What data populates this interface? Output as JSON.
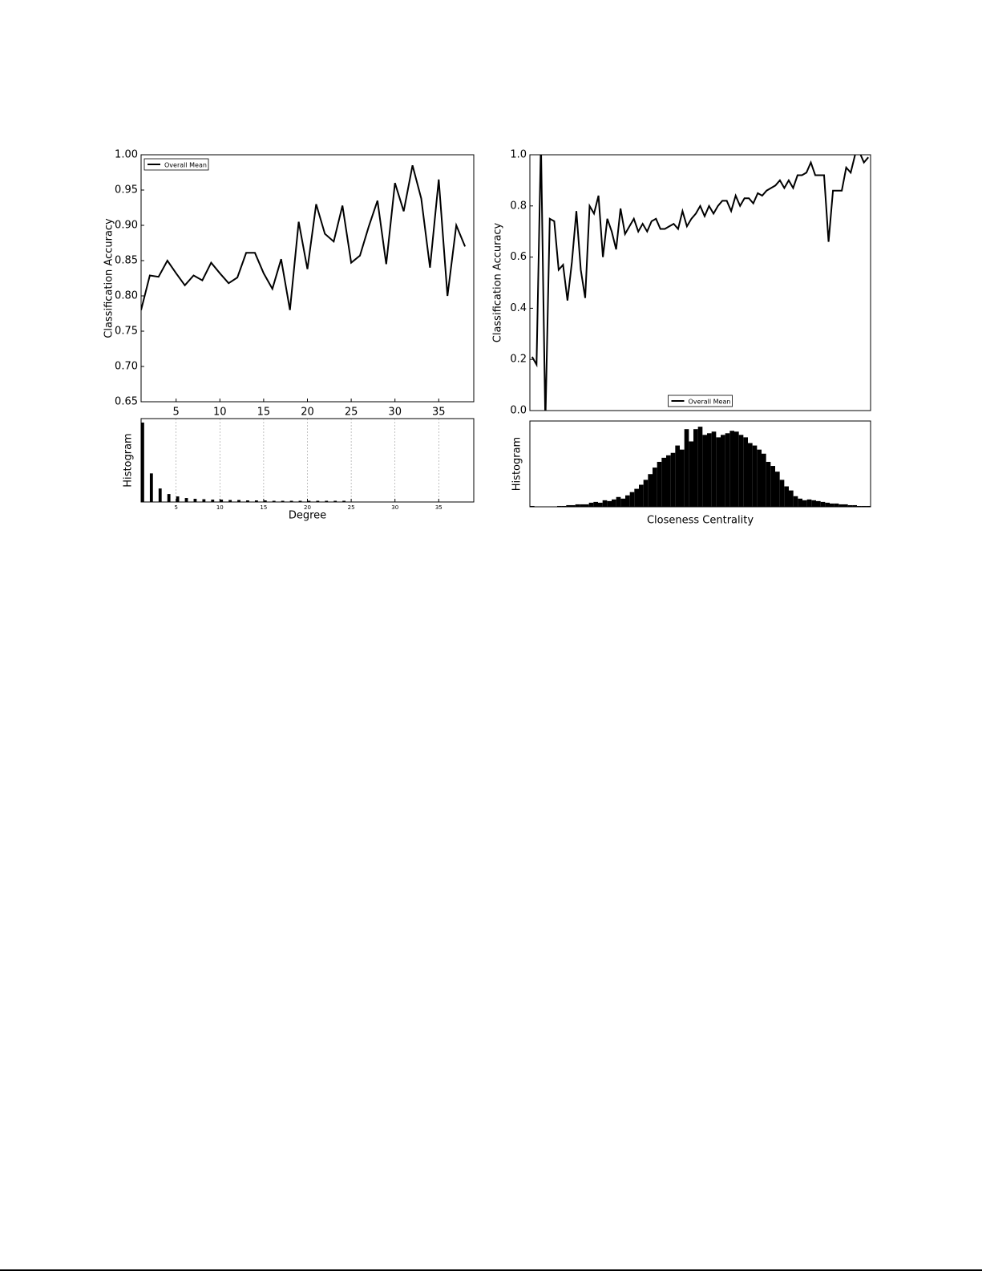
{
  "chart_data": [
    {
      "type": "line",
      "ylabel": "Classification Accuracy",
      "x": [
        1,
        2,
        3,
        4,
        5,
        6,
        7,
        8,
        9,
        10,
        11,
        12,
        13,
        14,
        15,
        16,
        17,
        18,
        19,
        20,
        21,
        22,
        23,
        24,
        25,
        26,
        27,
        28,
        29,
        30,
        31,
        32,
        33,
        34,
        35,
        36,
        37,
        38
      ],
      "series": [
        {
          "name": "Overall Mean",
          "color": "#000000",
          "values": [
            0.78,
            0.829,
            0.827,
            0.85,
            0.832,
            0.815,
            0.829,
            0.822,
            0.847,
            0.832,
            0.818,
            0.826,
            0.861,
            0.861,
            0.832,
            0.81,
            0.852,
            0.78,
            0.905,
            0.838,
            0.93,
            0.888,
            0.877,
            0.928,
            0.847,
            0.857,
            0.898,
            0.935,
            0.845,
            0.96,
            0.92,
            0.985,
            0.938,
            0.84,
            0.965,
            0.8,
            0.9,
            0.87
          ]
        }
      ],
      "xlim": [
        1,
        39
      ],
      "xticks": [
        5,
        10,
        15,
        20,
        25,
        30,
        35
      ],
      "ylim": [
        0.65,
        1
      ],
      "yticks": [
        0.65,
        {
          "value": 0.7,
          "label": "0.70"
        },
        0.75,
        {
          "value": 0.8,
          "label": "0.80"
        },
        0.85,
        {
          "value": 0.9,
          "label": "0.90"
        },
        0.95,
        {
          "value": 1,
          "label": "1.00"
        }
      ],
      "legend": "upper left",
      "grid": false
    },
    {
      "type": "line",
      "ylabel": "Classification Accuracy",
      "series": [
        {
          "name": "Overall Mean",
          "color": "#000000",
          "values": [
            0.21,
            0.18,
            1.05,
            -0.05,
            0.75,
            0.74,
            0.55,
            0.57,
            0.43,
            0.58,
            0.78,
            0.55,
            0.44,
            0.8,
            0.77,
            0.84,
            0.6,
            0.75,
            0.7,
            0.63,
            0.79,
            0.69,
            0.72,
            0.75,
            0.7,
            0.73,
            0.7,
            0.74,
            0.75,
            0.71,
            0.71,
            0.72,
            0.73,
            0.71,
            0.78,
            0.72,
            0.75,
            0.77,
            0.8,
            0.76,
            0.8,
            0.77,
            0.8,
            0.82,
            0.82,
            0.78,
            0.84,
            0.8,
            0.83,
            0.83,
            0.81,
            0.85,
            0.84,
            0.86,
            0.87,
            0.88,
            0.9,
            0.87,
            0.9,
            0.87,
            0.92,
            0.92,
            0.93,
            0.97,
            0.92,
            0.92,
            0.92,
            0.66,
            0.86,
            0.86,
            0.86,
            0.95,
            0.93,
            1.0,
            1.01,
            0.97,
            0.99
          ]
        }
      ],
      "ylim": [
        0,
        1
      ],
      "yticks": [
        {
          "value": 0,
          "label": "0.0"
        },
        0.2,
        0.4,
        0.6,
        0.8,
        {
          "value": 1,
          "label": "1.0"
        }
      ],
      "legend": "lower center",
      "grid": false
    },
    {
      "type": "bar",
      "ylabel": "Histogram",
      "xlabel": "Degree",
      "x": [
        1,
        2,
        3,
        4,
        5,
        6,
        7,
        8,
        9,
        10,
        11,
        12,
        13,
        14,
        15,
        16,
        17,
        18,
        19,
        20,
        21,
        22,
        23,
        24
      ],
      "values": [
        100,
        36,
        17,
        10,
        7,
        5,
        4,
        3.5,
        3,
        3,
        2.5,
        2.5,
        2,
        2,
        2,
        1.5,
        1.5,
        1.5,
        1.5,
        1.5,
        1.5,
        1.5,
        1.5,
        1.5
      ],
      "xlim": [
        1,
        39
      ],
      "xticks": [
        5,
        10,
        15,
        20,
        25,
        30,
        35
      ],
      "ylim": [
        0,
        105
      ],
      "color": "#000000",
      "grid": true
    },
    {
      "type": "bar",
      "ylabel": "Histogram",
      "xlabel": "Closeness Centrality",
      "values": [
        1,
        0,
        0,
        0,
        0,
        0,
        1,
        1,
        2,
        2,
        3,
        3,
        3,
        5,
        6,
        5,
        8,
        7,
        9,
        12,
        10,
        14,
        18,
        22,
        27,
        33,
        40,
        48,
        55,
        60,
        63,
        66,
        75,
        70,
        95,
        80,
        95,
        98,
        88,
        90,
        92,
        85,
        88,
        90,
        93,
        92,
        88,
        85,
        78,
        75,
        70,
        65,
        55,
        50,
        43,
        33,
        25,
        20,
        13,
        10,
        8,
        9,
        8,
        7,
        6,
        5,
        4,
        4,
        3,
        3,
        2,
        2,
        1,
        1,
        1
      ],
      "ylim": [
        0,
        105
      ],
      "color": "#000000",
      "grid": true
    }
  ]
}
